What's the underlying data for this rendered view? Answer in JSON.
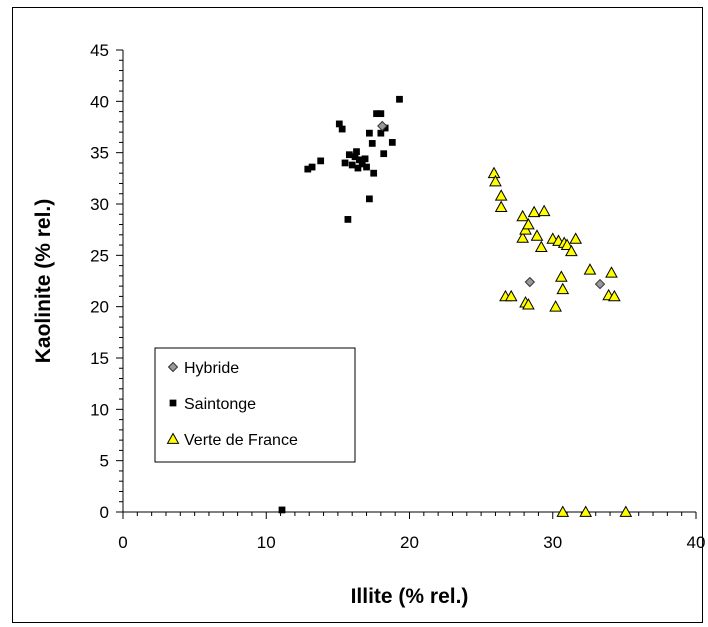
{
  "chart_data": {
    "type": "scatter",
    "title": "",
    "xlabel": "Illite (% rel.)",
    "ylabel": "Kaolinite (% rel.)",
    "xlim": [
      0,
      40
    ],
    "ylim": [
      0,
      45
    ],
    "x_ticks": [
      "0",
      "10",
      "20",
      "30",
      "40"
    ],
    "y_ticks": [
      "0",
      "5",
      "10",
      "15",
      "20",
      "25",
      "30",
      "35",
      "40",
      "45"
    ],
    "grid": false,
    "legend_position": "bottom-left",
    "series": [
      {
        "name": "Hybride",
        "marker": "diamond",
        "color": "#999999",
        "points": [
          [
            18.1,
            37.6
          ],
          [
            28.4,
            22.4
          ],
          [
            33.3,
            22.2
          ]
        ]
      },
      {
        "name": "Saintonge",
        "marker": "square",
        "color": "#000000",
        "points": [
          [
            11.1,
            0.2
          ],
          [
            12.9,
            33.4
          ],
          [
            13.2,
            33.6
          ],
          [
            13.8,
            34.2
          ],
          [
            15.1,
            37.8
          ],
          [
            15.3,
            37.3
          ],
          [
            15.5,
            34.0
          ],
          [
            15.7,
            28.5
          ],
          [
            15.8,
            34.8
          ],
          [
            16.0,
            33.8
          ],
          [
            16.2,
            34.6
          ],
          [
            16.3,
            35.1
          ],
          [
            16.4,
            33.5
          ],
          [
            16.5,
            34.3
          ],
          [
            16.7,
            33.9
          ],
          [
            16.9,
            34.4
          ],
          [
            17.0,
            33.6
          ],
          [
            17.2,
            36.9
          ],
          [
            17.2,
            30.5
          ],
          [
            17.4,
            35.9
          ],
          [
            17.5,
            33.0
          ],
          [
            17.7,
            38.8
          ],
          [
            18.0,
            36.9
          ],
          [
            18.0,
            38.8
          ],
          [
            18.2,
            34.9
          ],
          [
            18.3,
            37.4
          ],
          [
            18.8,
            36.0
          ],
          [
            19.3,
            40.2
          ]
        ]
      },
      {
        "name": "Verte de France",
        "marker": "triangle",
        "color": "#ffff00",
        "points": [
          [
            25.9,
            33.0
          ],
          [
            26.0,
            32.2
          ],
          [
            26.4,
            30.8
          ],
          [
            26.4,
            29.7
          ],
          [
            26.7,
            21.0
          ],
          [
            27.1,
            21.0
          ],
          [
            27.9,
            28.8
          ],
          [
            27.9,
            26.7
          ],
          [
            28.1,
            27.5
          ],
          [
            28.1,
            20.4
          ],
          [
            28.3,
            28.0
          ],
          [
            28.3,
            20.2
          ],
          [
            28.7,
            29.2
          ],
          [
            28.9,
            26.9
          ],
          [
            29.2,
            25.8
          ],
          [
            29.4,
            29.3
          ],
          [
            30.0,
            26.6
          ],
          [
            30.2,
            20.0
          ],
          [
            30.4,
            26.4
          ],
          [
            30.6,
            22.9
          ],
          [
            30.7,
            21.7
          ],
          [
            30.7,
            0.0
          ],
          [
            30.8,
            26.2
          ],
          [
            31.0,
            26.0
          ],
          [
            31.3,
            25.4
          ],
          [
            31.6,
            26.6
          ],
          [
            32.3,
            0.0
          ],
          [
            32.6,
            23.6
          ],
          [
            33.9,
            21.1
          ],
          [
            34.1,
            23.3
          ],
          [
            34.3,
            21.0
          ],
          [
            35.1,
            0.0
          ]
        ]
      }
    ]
  }
}
